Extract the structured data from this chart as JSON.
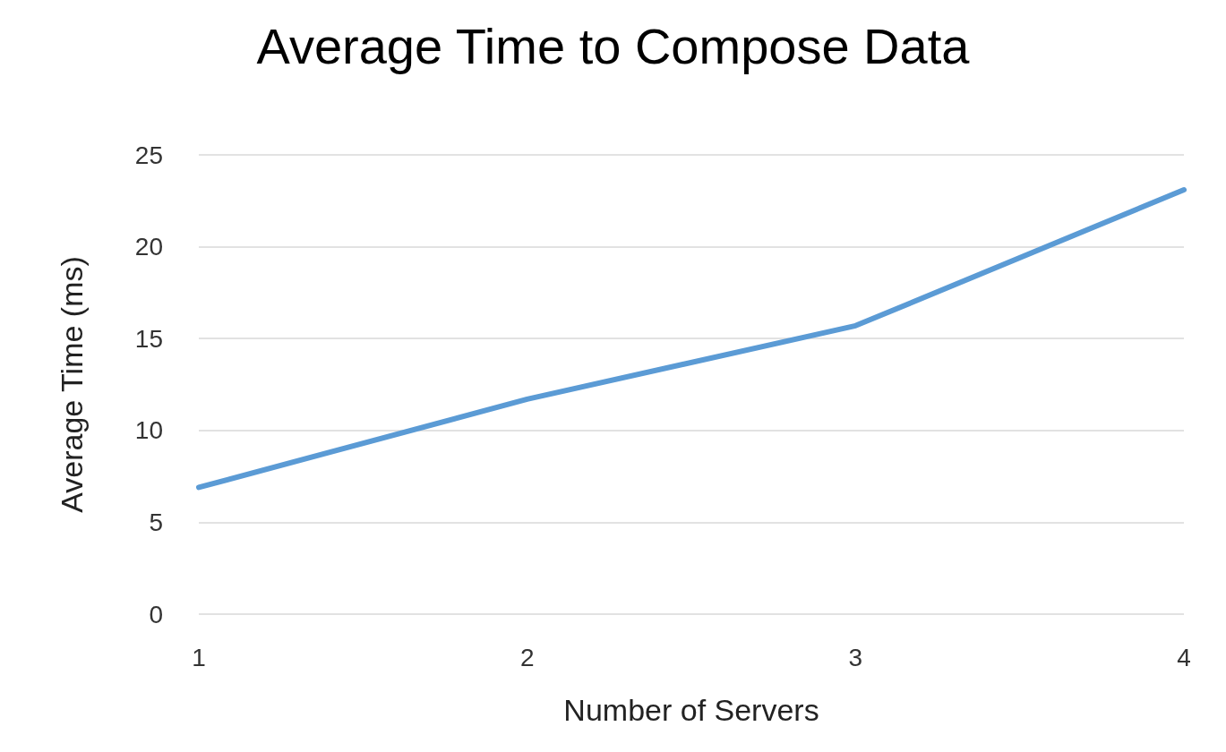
{
  "chart_data": {
    "type": "line",
    "title": "Average Time to Compose Data",
    "xlabel": "Number of Servers",
    "ylabel": "Average Time (ms)",
    "categories": [
      "1",
      "2",
      "3",
      "4"
    ],
    "series": [
      {
        "color": "#5b9bd5",
        "values": [
          6.9,
          11.7,
          15.7,
          23.1
        ]
      }
    ],
    "ylim": [
      0,
      25
    ],
    "yticks": [
      0,
      5,
      10,
      15,
      20,
      25
    ],
    "grid": "y",
    "marker": "none",
    "line_style": "solid"
  }
}
